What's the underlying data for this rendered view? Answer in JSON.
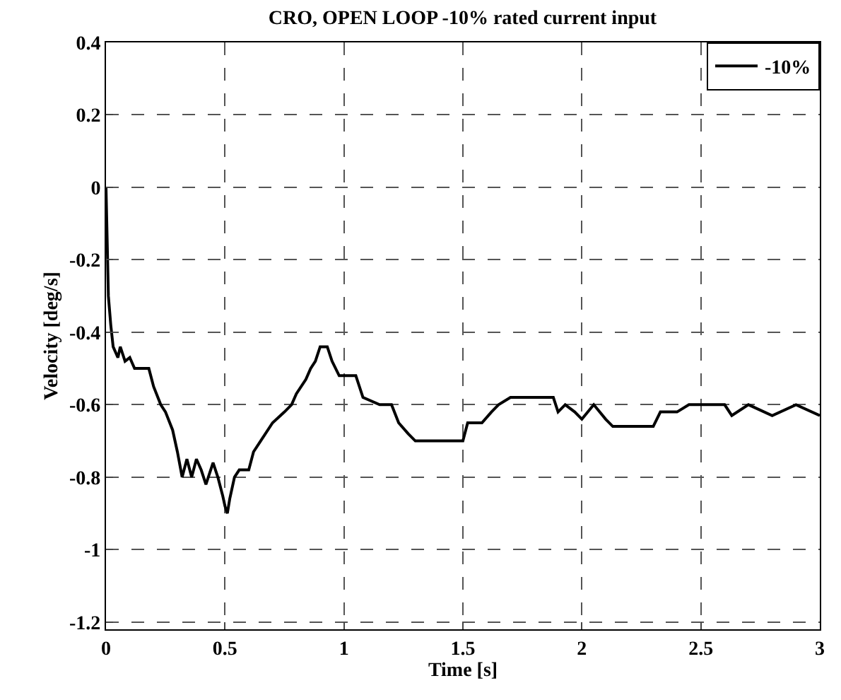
{
  "chart_data": {
    "type": "line",
    "title": "CRO, OPEN LOOP -10% rated current input",
    "xlabel": "Time [s]",
    "ylabel": "Velocity [deg/s]",
    "xlim": [
      0,
      3
    ],
    "xticks": [
      0,
      0.5,
      1,
      1.5,
      2,
      2.5,
      3
    ],
    "ylim": [
      -1.22,
      0.4
    ],
    "yticks": [
      -1.2,
      -1,
      -0.8,
      -0.6,
      -0.4,
      -0.2,
      0,
      0.2,
      0.4
    ],
    "grid": true,
    "legend": "top right",
    "line_style": "solid",
    "series": [
      {
        "name": "-10%",
        "color": "#000000",
        "x": [
          0,
          0.01,
          0.02,
          0.03,
          0.05,
          0.06,
          0.08,
          0.1,
          0.12,
          0.18,
          0.2,
          0.23,
          0.25,
          0.28,
          0.3,
          0.32,
          0.34,
          0.36,
          0.38,
          0.4,
          0.42,
          0.45,
          0.47,
          0.49,
          0.5,
          0.51,
          0.52,
          0.54,
          0.56,
          0.6,
          0.62,
          0.65,
          0.7,
          0.75,
          0.78,
          0.8,
          0.84,
          0.86,
          0.88,
          0.9,
          0.93,
          0.95,
          0.98,
          1.05,
          1.08,
          1.15,
          1.2,
          1.23,
          1.27,
          1.3,
          1.4,
          1.5,
          1.52,
          1.58,
          1.62,
          1.65,
          1.7,
          1.8,
          1.88,
          1.9,
          1.93,
          1.97,
          2.0,
          2.05,
          2.1,
          2.13,
          2.3,
          2.33,
          2.4,
          2.45,
          2.5,
          2.6,
          2.63,
          2.7,
          2.8,
          2.9,
          3.0
        ],
        "values": [
          0,
          -0.3,
          -0.38,
          -0.44,
          -0.47,
          -0.44,
          -0.48,
          -0.47,
          -0.5,
          -0.5,
          -0.55,
          -0.6,
          -0.62,
          -0.67,
          -0.73,
          -0.8,
          -0.75,
          -0.8,
          -0.75,
          -0.78,
          -0.82,
          -0.76,
          -0.8,
          -0.85,
          -0.88,
          -0.9,
          -0.86,
          -0.8,
          -0.78,
          -0.78,
          -0.73,
          -0.7,
          -0.65,
          -0.62,
          -0.6,
          -0.57,
          -0.53,
          -0.5,
          -0.48,
          -0.44,
          -0.44,
          -0.48,
          -0.52,
          -0.52,
          -0.58,
          -0.6,
          -0.6,
          -0.65,
          -0.68,
          -0.7,
          -0.7,
          -0.7,
          -0.65,
          -0.65,
          -0.62,
          -0.6,
          -0.58,
          -0.58,
          -0.58,
          -0.62,
          -0.6,
          -0.62,
          -0.64,
          -0.6,
          -0.64,
          -0.66,
          -0.66,
          -0.62,
          -0.62,
          -0.6,
          -0.6,
          -0.6,
          -0.63,
          -0.6,
          -0.63,
          -0.6,
          -0.63
        ]
      }
    ]
  }
}
